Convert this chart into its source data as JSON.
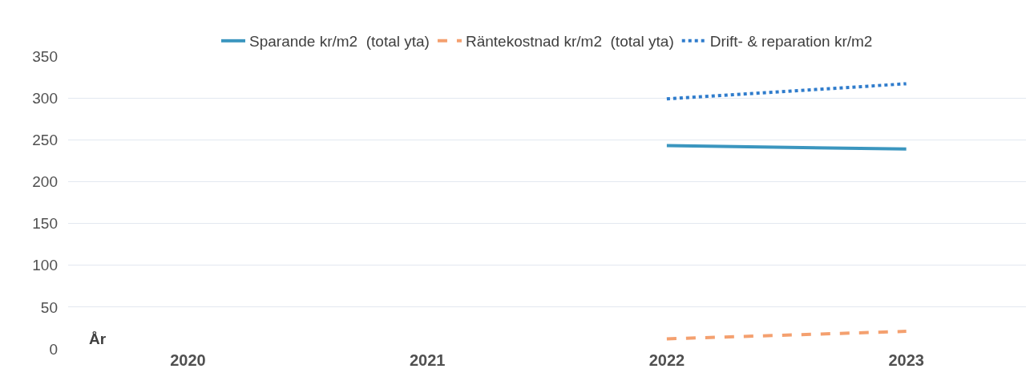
{
  "chart_data": {
    "type": "line",
    "xlabel": "År",
    "categories": [
      "2020",
      "2021",
      "2022",
      "2023"
    ],
    "series": [
      {
        "name": "Sparande kr/m2  (total yta)",
        "color": "#3b96bf",
        "line_style": "solid",
        "values": [
          null,
          null,
          243,
          239
        ]
      },
      {
        "name": "Räntekostnad kr/m2  (total yta)",
        "color": "#f4a06f",
        "line_style": "dashed",
        "values": [
          null,
          null,
          12,
          21
        ]
      },
      {
        "name": "Drift- & reparation kr/m2",
        "color": "#2f7ccc",
        "line_style": "dotted",
        "values": [
          null,
          null,
          299,
          317
        ]
      }
    ],
    "ylim": [
      0,
      350
    ],
    "yticks": [
      0,
      50,
      100,
      150,
      200,
      250,
      300,
      350
    ],
    "grid": "y",
    "legend": "top",
    "marker": "none"
  }
}
